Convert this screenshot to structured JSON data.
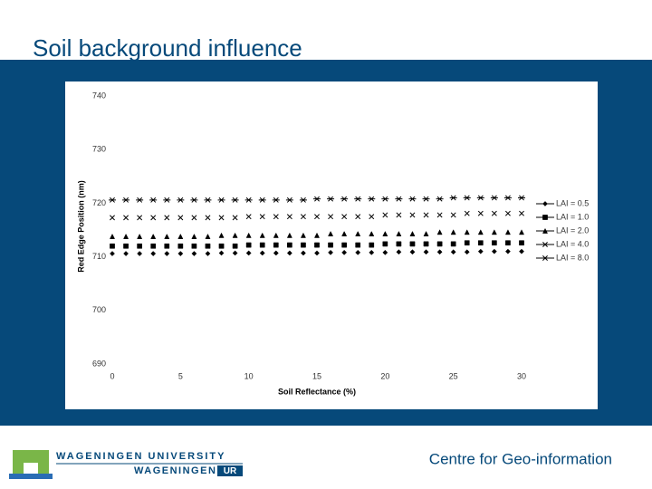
{
  "slide": {
    "title": "Soil background influence",
    "footer": "Centre for Geo-information",
    "logo_top": "WAGENINGEN UNIVERSITY",
    "logo_bottom_1": "WAGENINGEN",
    "logo_bottom_2": "UR"
  },
  "chart_data": {
    "type": "scatter",
    "xlabel": "Soil Reflectance (%)",
    "ylabel": "Red Edge Position (nm)",
    "x": [
      0,
      1,
      2,
      3,
      4,
      5,
      6,
      7,
      8,
      9,
      10,
      11,
      12,
      13,
      14,
      15,
      16,
      17,
      18,
      19,
      20,
      21,
      22,
      23,
      24,
      25,
      26,
      27,
      28,
      29,
      30
    ],
    "xlim": [
      0,
      30
    ],
    "xticks": [
      0,
      5,
      10,
      15,
      20,
      25,
      30
    ],
    "ylim": [
      690,
      740
    ],
    "yticks": [
      690,
      700,
      710,
      720,
      730,
      740
    ],
    "series": [
      {
        "name": "LAI = 0.5",
        "color": "#000000",
        "marker": "diamond",
        "values": [
          710.6,
          710.6,
          710.6,
          710.6,
          710.6,
          710.6,
          710.6,
          710.6,
          710.7,
          710.7,
          710.7,
          710.7,
          710.7,
          710.7,
          710.7,
          710.7,
          710.8,
          710.8,
          710.8,
          710.8,
          710.8,
          710.9,
          710.9,
          710.9,
          710.9,
          710.9,
          710.9,
          711.0,
          711.0,
          711.0,
          711.0
        ]
      },
      {
        "name": "LAI = 1.0",
        "color": "#000000",
        "marker": "square",
        "values": [
          712.0,
          712.0,
          712.0,
          712.0,
          712.0,
          712.0,
          712.0,
          712.0,
          712.0,
          712.0,
          712.2,
          712.2,
          712.2,
          712.2,
          712.2,
          712.2,
          712.2,
          712.2,
          712.2,
          712.2,
          712.4,
          712.4,
          712.4,
          712.4,
          712.4,
          712.4,
          712.6,
          712.6,
          712.6,
          712.6,
          712.6
        ]
      },
      {
        "name": "LAI = 2.0",
        "color": "#000000",
        "marker": "triangle",
        "values": [
          713.8,
          713.8,
          713.8,
          713.8,
          713.8,
          713.8,
          713.8,
          713.8,
          714.0,
          714.0,
          714.0,
          714.0,
          714.0,
          714.0,
          714.0,
          714.0,
          714.3,
          714.3,
          714.3,
          714.3,
          714.3,
          714.3,
          714.3,
          714.3,
          714.6,
          714.6,
          714.6,
          714.6,
          714.6,
          714.6,
          714.6
        ]
      },
      {
        "name": "LAI = 4.0",
        "color": "#000000",
        "marker": "x",
        "values": [
          717.3,
          717.3,
          717.3,
          717.3,
          717.3,
          717.3,
          717.3,
          717.3,
          717.3,
          717.3,
          717.5,
          717.5,
          717.5,
          717.5,
          717.5,
          717.5,
          717.5,
          717.5,
          717.5,
          717.5,
          717.8,
          717.8,
          717.8,
          717.8,
          717.8,
          717.8,
          718.1,
          718.1,
          718.1,
          718.1,
          718.1
        ]
      },
      {
        "name": "LAI = 8.0",
        "color": "#000000",
        "marker": "star",
        "values": [
          720.6,
          720.6,
          720.6,
          720.6,
          720.6,
          720.6,
          720.6,
          720.6,
          720.6,
          720.6,
          720.6,
          720.6,
          720.6,
          720.6,
          720.6,
          720.8,
          720.8,
          720.8,
          720.8,
          720.8,
          720.8,
          720.8,
          720.8,
          720.8,
          720.8,
          721.0,
          721.0,
          721.0,
          721.0,
          721.0,
          721.0
        ]
      }
    ]
  }
}
